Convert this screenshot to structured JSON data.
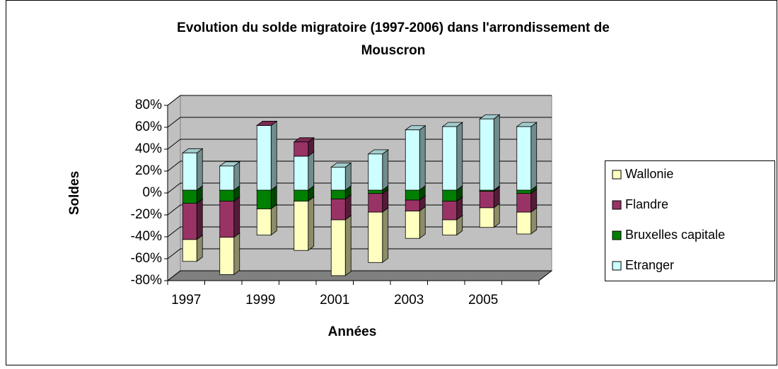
{
  "chart_data": {
    "type": "bar3d_stacked",
    "title": "Evolution du solde migratoire (1997-2006) dans l'arrondissement de Mouscron",
    "x_label": "Années",
    "y_label": "Soldes",
    "categories": [
      "1997",
      null,
      "1999",
      null,
      "2001",
      null,
      "2003",
      null,
      "2005",
      null
    ],
    "series": [
      {
        "name": "Wallonie",
        "color": "#ffffc0",
        "values": [
          -20,
          -34,
          -24,
          -45,
          -51,
          -46,
          -25,
          -14,
          -18,
          -20
        ]
      },
      {
        "name": "Flandre",
        "color": "#993366",
        "values": [
          -33,
          -33,
          0,
          13,
          -19,
          -17,
          -10,
          -17,
          -15,
          -17
        ]
      },
      {
        "name": "Bruxelles capitale",
        "color": "#008000",
        "values": [
          -12,
          -10,
          -17,
          -10,
          -8,
          -3,
          -9,
          -10,
          -1,
          -3
        ]
      },
      {
        "name": "Etranger",
        "color": "#ccffff",
        "values": [
          34,
          22,
          59,
          31,
          21,
          33,
          55,
          58,
          65,
          58
        ]
      }
    ],
    "ylim": [
      -80,
      80
    ],
    "yticks": [
      {
        "value": -80,
        "label": "-80%"
      },
      {
        "value": -60,
        "label": "-60%"
      },
      {
        "value": -40,
        "label": "-40%"
      },
      {
        "value": -20,
        "label": "-20%"
      },
      {
        "value": 0,
        "label": "0%"
      },
      {
        "value": 20,
        "label": "20%"
      },
      {
        "value": 40,
        "label": "40%"
      },
      {
        "value": 60,
        "label": "60%"
      },
      {
        "value": 80,
        "label": "80%"
      }
    ],
    "grid": true,
    "legend": "right"
  }
}
